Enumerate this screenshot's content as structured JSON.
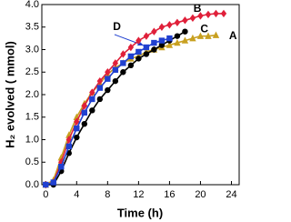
{
  "chart_data": {
    "type": "line",
    "x_label": "Time (h)",
    "y_label": "H₂ evolved ( mmol)",
    "xlim": [
      -0.5,
      25
    ],
    "xticks": [
      0,
      4,
      8,
      12,
      16,
      20,
      24
    ],
    "ylim": [
      0,
      4
    ],
    "yticks": [
      {
        "value": 0,
        "label": "0.0"
      },
      {
        "value": 0.5,
        "label": "0.5"
      },
      {
        "value": 1,
        "label": "1.0"
      },
      {
        "value": 1.5,
        "label": "1.5"
      },
      {
        "value": 2,
        "label": "2.0"
      },
      {
        "value": 2.5,
        "label": "2.5"
      },
      {
        "value": 3,
        "label": "3.0"
      },
      {
        "value": 3.5,
        "label": "3.5"
      },
      {
        "value": 4,
        "label": "4.0"
      }
    ],
    "series": [
      {
        "name": "A",
        "color": "#c8a020",
        "marker": "triangle",
        "x": [
          0,
          1,
          2,
          3,
          4,
          5,
          6,
          7,
          8,
          9,
          10,
          11,
          12,
          13,
          14,
          15,
          16,
          17,
          18,
          19,
          20,
          21,
          22
        ],
        "values": [
          0,
          0.1,
          0.6,
          1.1,
          1.5,
          1.8,
          2.05,
          2.25,
          2.45,
          2.6,
          2.7,
          2.8,
          2.85,
          2.95,
          3.0,
          3.05,
          3.1,
          3.15,
          3.2,
          3.25,
          3.3,
          3.3,
          3.32
        ]
      },
      {
        "name": "B",
        "color": "#e0203a",
        "marker": "diamond",
        "x": [
          0,
          1,
          2,
          3,
          4,
          5,
          6,
          7,
          8,
          9,
          10,
          11,
          12,
          13,
          14,
          15,
          16,
          17,
          18,
          19,
          20,
          21,
          22,
          23
        ],
        "values": [
          0,
          0.05,
          0.5,
          1.0,
          1.4,
          1.75,
          2.05,
          2.3,
          2.5,
          2.7,
          2.9,
          3.05,
          3.2,
          3.3,
          3.4,
          3.5,
          3.55,
          3.6,
          3.65,
          3.7,
          3.75,
          3.78,
          3.8,
          3.8
        ]
      },
      {
        "name": "C",
        "color": "#000000",
        "marker": "circle",
        "x": [
          0,
          1,
          2,
          3,
          4,
          5,
          6,
          7,
          8,
          9,
          10,
          11,
          12,
          13,
          14,
          15,
          16,
          17,
          18
        ],
        "values": [
          0,
          0,
          0.3,
          0.7,
          1.05,
          1.35,
          1.65,
          1.9,
          2.1,
          2.3,
          2.5,
          2.65,
          2.8,
          2.9,
          3.0,
          3.1,
          3.2,
          3.3,
          3.4
        ]
      },
      {
        "name": "D",
        "color": "#2040d0",
        "marker": "square",
        "x": [
          0,
          1,
          2,
          3,
          4,
          5,
          6,
          7,
          8,
          9,
          10,
          11,
          12,
          13,
          14,
          15,
          16
        ],
        "values": [
          0,
          0.05,
          0.4,
          0.85,
          1.25,
          1.6,
          1.9,
          2.15,
          2.35,
          2.55,
          2.7,
          2.85,
          2.95,
          3.05,
          3.15,
          3.2,
          3.25
        ]
      }
    ]
  }
}
